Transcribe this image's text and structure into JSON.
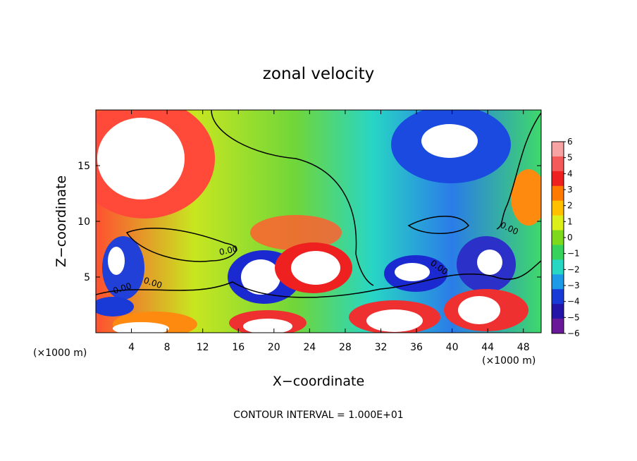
{
  "chart_data": {
    "type": "heatmap",
    "title": "zonal velocity",
    "xlabel": "X−coordinate",
    "ylabel": "Z−coordinate",
    "x_unit_left": "(×1000 m)",
    "x_unit_right": "(×1000 m)",
    "footer": "CONTOUR INTERVAL = 1.000E+01",
    "xlim": [
      0,
      50
    ],
    "ylim": [
      0,
      20
    ],
    "x_ticks": [
      4,
      8,
      12,
      16,
      20,
      24,
      28,
      32,
      36,
      40,
      44,
      48
    ],
    "x_tick_labels": [
      "4",
      "8",
      "12",
      "16",
      "20",
      "24",
      "28",
      "32",
      "36",
      "40",
      "44",
      "48"
    ],
    "y_ticks": [
      5,
      10,
      15
    ],
    "y_tick_labels": [
      "5",
      "10",
      "15"
    ],
    "colorbar": {
      "levels": [
        6,
        5,
        4,
        3,
        2,
        1,
        0,
        -1,
        -2,
        -3,
        -4,
        -5,
        -6
      ],
      "labels": [
        "6",
        "5",
        "4",
        "3",
        "2",
        "1",
        "0",
        "−1",
        "−2",
        "−3",
        "−4",
        "−5",
        "−6"
      ],
      "colors": [
        "#f7a3a3",
        "#f55a5a",
        "#ee2020",
        "#ff7a00",
        "#ffc000",
        "#dcef1a",
        "#7ed81c",
        "#36d25c",
        "#28d6c4",
        "#1c9ae8",
        "#1a3ad8",
        "#2414a8",
        "#6a1a98"
      ]
    },
    "contour_labels": [
      "0.00",
      "0.00",
      "0.00",
      "0.00",
      "0.00"
    ],
    "grid": false,
    "legend": "colorbar-right"
  }
}
